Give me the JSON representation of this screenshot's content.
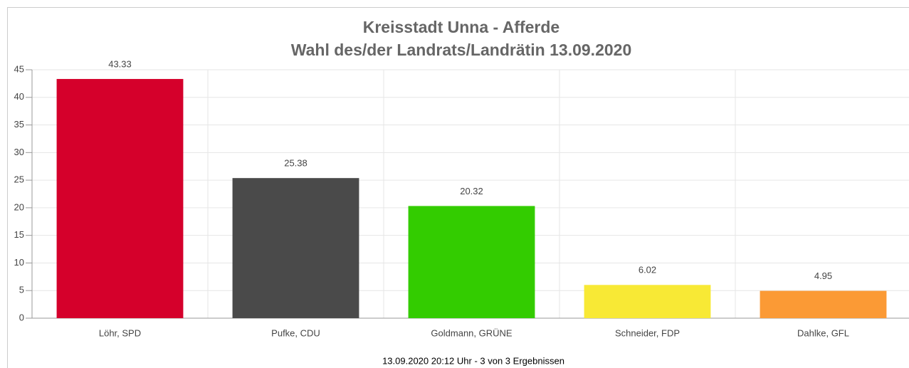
{
  "chart_data": {
    "type": "bar",
    "title": "Kreisstadt Unna - Afferde",
    "subtitle": "Wahl des/der Landrats/Landrätin 13.09.2020",
    "categories": [
      "Löhr, SPD",
      "Pufke, CDU",
      "Goldmann, GRÜNE",
      "Schneider, FDP",
      "Dahlke, GFL"
    ],
    "values": [
      43.33,
      25.38,
      20.32,
      6.02,
      4.95
    ],
    "colors": [
      "#d5002b",
      "#4a4a4a",
      "#33cc00",
      "#f8e935",
      "#fb9a35"
    ],
    "ylim": [
      0,
      45
    ],
    "yticks": [
      0,
      5,
      10,
      15,
      20,
      25,
      30,
      35,
      40,
      45
    ],
    "grid": true,
    "footnote": "13.09.2020 20:12 Uhr - 3 von 3 Ergebnissen"
  }
}
